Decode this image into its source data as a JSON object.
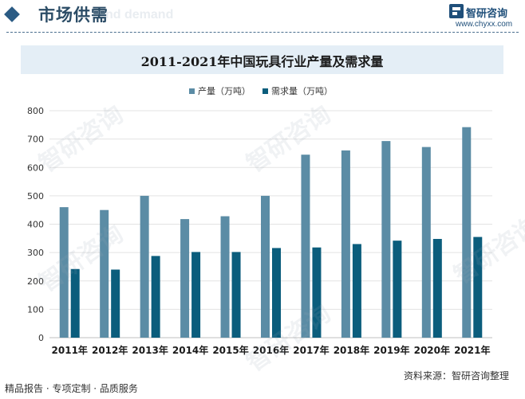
{
  "header": {
    "title": "市场供需",
    "subtitle": "nd demand",
    "brand_name": "智研咨询",
    "brand_url": "www.chyxx.com"
  },
  "watermark_text": "智研咨询",
  "footer": {
    "left": "精品报告 · 专项定制 · 品质服务",
    "source": "资料来源：智研咨询整理"
  },
  "colors": {
    "production": "#5b8ca5",
    "demand": "#0b5d7c",
    "title_band": "#e4eef6",
    "header_accent": "#2b5b84"
  },
  "chart_data": {
    "type": "bar",
    "title": "2011-2021年中国玩具行业产量及需求量",
    "categories": [
      "2011年",
      "2012年",
      "2013年",
      "2014年",
      "2015年",
      "2016年",
      "2017年",
      "2018年",
      "2019年",
      "2020年",
      "2021年"
    ],
    "series": [
      {
        "name": "产量（万吨）",
        "values": [
          460,
          450,
          500,
          418,
          428,
          500,
          645,
          660,
          693,
          672,
          742
        ]
      },
      {
        "name": "需求量（万吨）",
        "values": [
          242,
          240,
          288,
          302,
          302,
          316,
          318,
          330,
          342,
          348,
          355
        ]
      }
    ],
    "ylim": [
      0,
      800
    ],
    "yticks": [
      0,
      100,
      200,
      300,
      400,
      500,
      600,
      700,
      800
    ],
    "grid": true,
    "legend_position": "top"
  }
}
